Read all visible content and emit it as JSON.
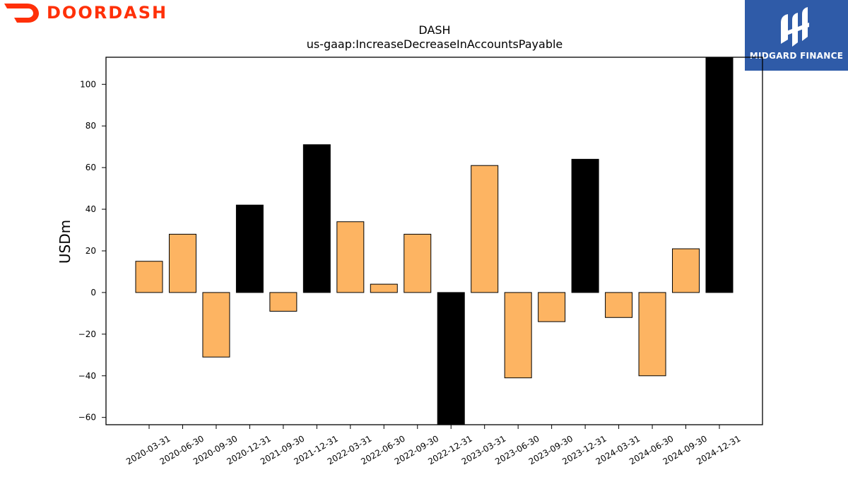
{
  "branding": {
    "left_logo_text": "DOORDASH",
    "right_logo_text": "MIDGARD FINANCE",
    "left_logo_color": "#ff3008",
    "right_logo_bg": "#2f5ba8"
  },
  "chart_data": {
    "type": "bar",
    "title": "DASH",
    "subtitle": "us-gaap:IncreaseDecreaseInAccountsPayable",
    "xlabel": "",
    "ylabel": "USDm",
    "ylim": [
      -63.5,
      113
    ],
    "yticks": [
      -60,
      -40,
      -20,
      0,
      20,
      40,
      60,
      80,
      100
    ],
    "categories": [
      "2020-03-31",
      "2020-06-30",
      "2020-09-30",
      "2020-12-31",
      "2021-09-30",
      "2021-12-31",
      "2022-03-31",
      "2022-06-30",
      "2022-09-30",
      "2022-12-31",
      "2023-03-31",
      "2023-06-30",
      "2023-09-30",
      "2023-12-31",
      "2024-03-31",
      "2024-06-30",
      "2024-09-30",
      "2024-12-31"
    ],
    "values": [
      15,
      28,
      -31,
      42,
      -9,
      71,
      34,
      4,
      28,
      -64,
      61,
      -41,
      -14,
      64,
      -12,
      -40,
      21,
      113
    ],
    "bar_colors": [
      "#fdb462",
      "#fdb462",
      "#fdb462",
      "#000000",
      "#fdb462",
      "#000000",
      "#fdb462",
      "#fdb462",
      "#fdb462",
      "#000000",
      "#fdb462",
      "#fdb462",
      "#fdb462",
      "#000000",
      "#fdb462",
      "#fdb462",
      "#fdb462",
      "#000000"
    ],
    "grid": false,
    "legend": "none"
  }
}
